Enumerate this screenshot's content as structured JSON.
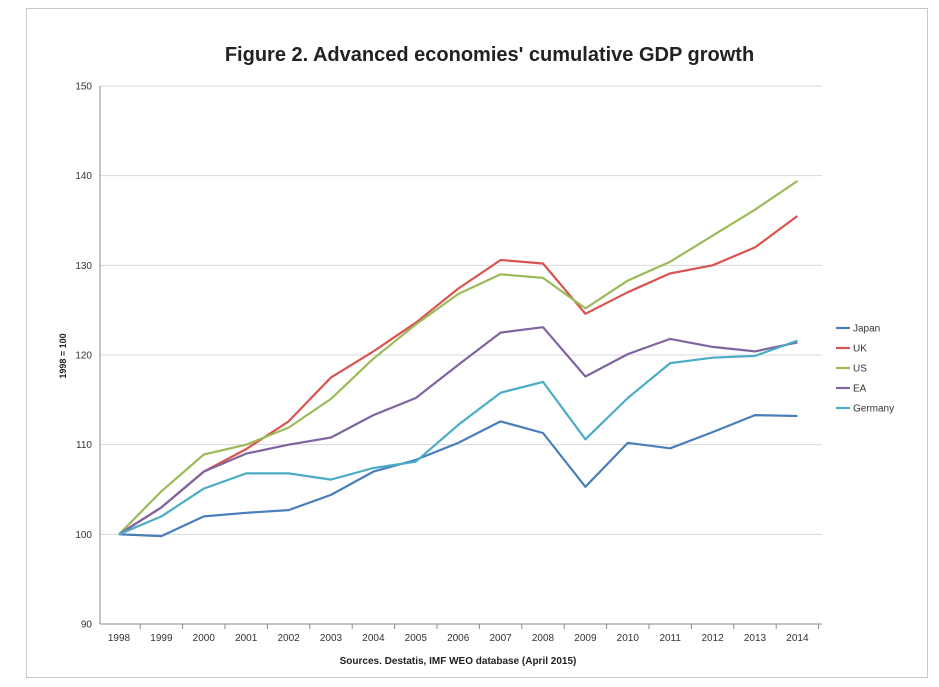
{
  "chart_data": {
    "type": "line",
    "title": "Figure 2. Advanced economies' cumulative GDP growth",
    "ylabel": "1998 = 100",
    "xlabel": "Sources. Destatis, IMF WEO database (April 2015)",
    "ylim": [
      90,
      150
    ],
    "yticks": [
      "90",
      "100",
      "110",
      "120",
      "130",
      "140",
      "150"
    ],
    "x": [
      "1998",
      "1999",
      "2000",
      "2001",
      "2002",
      "2003",
      "2004",
      "2005",
      "2006",
      "2007",
      "2008",
      "2009",
      "2010",
      "2011",
      "2012",
      "2013",
      "2014"
    ],
    "grid": true,
    "legend_position": "right",
    "series": [
      {
        "name": "Japan",
        "color": "#4a7ebb",
        "values": [
          100,
          99.8,
          102,
          102.4,
          102.7,
          104.4,
          107,
          108.3,
          110.2,
          112.6,
          111.3,
          105.3,
          110.2,
          109.6,
          111.4,
          113.3,
          113.2
        ]
      },
      {
        "name": "UK",
        "color": "#d9534f",
        "values": [
          100,
          103,
          107,
          109.5,
          112.6,
          117.5,
          120.4,
          123.6,
          127.4,
          130.6,
          130.2,
          124.6,
          127,
          129.1,
          130,
          132,
          135.5
        ]
      },
      {
        "name": "US",
        "color": "#9bbb59",
        "values": [
          100,
          104.8,
          108.9,
          110,
          111.9,
          115.1,
          119.6,
          123.4,
          126.8,
          129,
          128.6,
          125.2,
          128.3,
          130.4,
          133.3,
          136.2,
          139.4
        ]
      },
      {
        "name": "EA",
        "color": "#8064a2",
        "values": [
          100,
          103,
          107,
          109,
          110,
          110.8,
          113.3,
          115.2,
          118.9,
          122.5,
          123.1,
          117.6,
          120.1,
          121.8,
          120.9,
          120.4,
          121.4
        ]
      },
      {
        "name": "Germany",
        "color": "#4bacc6",
        "values": [
          100,
          102,
          105.1,
          106.8,
          106.8,
          106.1,
          107.4,
          108.1,
          112.2,
          115.8,
          117,
          110.6,
          115.2,
          119.1,
          119.7,
          119.9,
          121.6
        ]
      }
    ]
  }
}
